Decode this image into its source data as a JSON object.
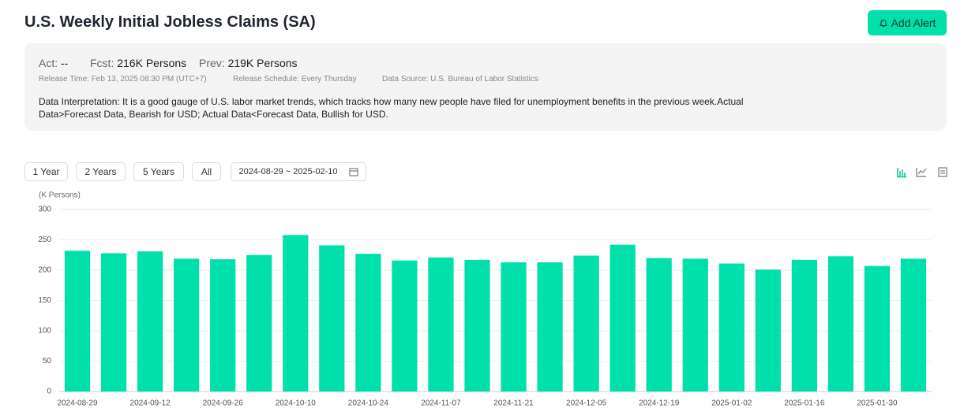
{
  "header": {
    "title": "U.S. Weekly Initial Jobless Claims (SA)",
    "button": "Add Alert"
  },
  "info": {
    "act_label": "Act:",
    "act_value": "--",
    "fcst_label": "Fcst:",
    "fcst_value": "216K Persons",
    "prev_label": "Prev:",
    "prev_value": "219K Persons",
    "release_time": "Release Time: Feb 13, 2025 08:30 PM (UTC+7)",
    "schedule": "Release Schedule: Every Thursday",
    "source": "Data Source: U.S. Bureau of Labor Statistics",
    "interpretation": "Data Interpretation: It is a good gauge of U.S. labor market trends, which tracks how many new people have filed for unemployment benefits in the previous week.Actual Data>Forecast Data, Bearish for USD; Actual Data<Forecast Data, Bullish for USD."
  },
  "controls": {
    "ranges": [
      "1 Year",
      "2 Years",
      "5 Years",
      "All"
    ],
    "date_range": "2024-08-29 ~ 2025-02-10"
  },
  "chart_data": {
    "type": "bar",
    "y_label": "(K Persons)",
    "categories": [
      "2024-08-29",
      null,
      "2024-09-12",
      null,
      "2024-09-26",
      null,
      "2024-10-10",
      null,
      "2024-10-24",
      null,
      "2024-11-07",
      null,
      "2024-11-21",
      null,
      "2024-12-05",
      null,
      "2024-12-19",
      null,
      "2025-01-02",
      null,
      "2025-01-16",
      null,
      "2025-01-30",
      null
    ],
    "values": [
      232,
      228,
      231,
      219,
      218,
      225,
      258,
      241,
      227,
      216,
      221,
      217,
      213,
      213,
      224,
      242,
      220,
      219,
      211,
      201,
      217,
      223,
      207,
      219
    ],
    "color": "#00e0ab",
    "ylim": [
      0,
      300
    ],
    "yticks": [
      0,
      50,
      100,
      150,
      200,
      250,
      300
    ],
    "grid": true
  }
}
